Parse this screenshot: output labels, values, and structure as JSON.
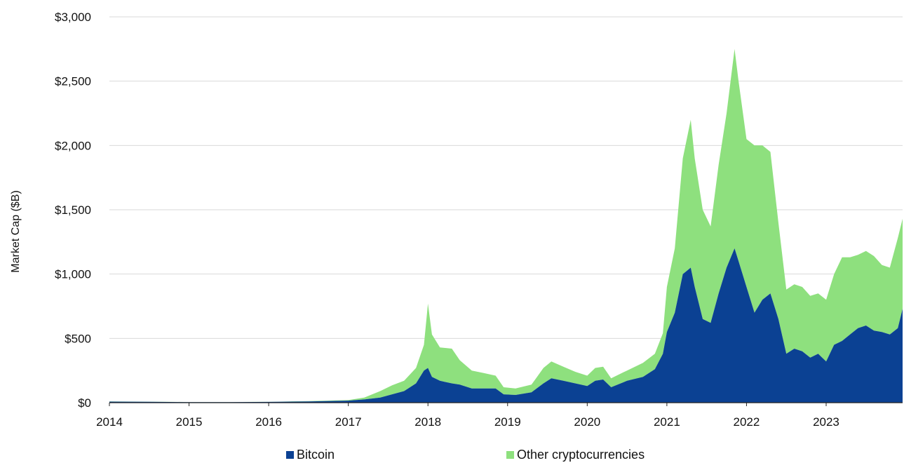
{
  "chart_data": {
    "type": "area",
    "stacked": true,
    "title": "",
    "xlabel": "",
    "ylabel": "Market Cap ($B)",
    "ylim": [
      0,
      3000
    ],
    "xlim": [
      2014.0,
      2023.96
    ],
    "y_ticks": [
      {
        "value": 0,
        "label": "$0"
      },
      {
        "value": 500,
        "label": "$500"
      },
      {
        "value": 1000,
        "label": "$1,000"
      },
      {
        "value": 1500,
        "label": "$1,500"
      },
      {
        "value": 2000,
        "label": "$2,000"
      },
      {
        "value": 2500,
        "label": "$2,500"
      },
      {
        "value": 3000,
        "label": "$3,000"
      }
    ],
    "x_ticks": [
      {
        "value": 2014,
        "label": "2014"
      },
      {
        "value": 2015,
        "label": "2015"
      },
      {
        "value": 2016,
        "label": "2016"
      },
      {
        "value": 2017,
        "label": "2017"
      },
      {
        "value": 2018,
        "label": "2018"
      },
      {
        "value": 2019,
        "label": "2019"
      },
      {
        "value": 2020,
        "label": "2020"
      },
      {
        "value": 2021,
        "label": "2021"
      },
      {
        "value": 2022,
        "label": "2022"
      },
      {
        "value": 2023,
        "label": "2023"
      }
    ],
    "grid": "horizontal",
    "legend_position": "bottom",
    "x": [
      2014.0,
      2014.5,
      2015.0,
      2015.5,
      2016.0,
      2016.5,
      2017.0,
      2017.2,
      2017.4,
      2017.55,
      2017.7,
      2017.85,
      2017.95,
      2018.0,
      2018.05,
      2018.15,
      2018.3,
      2018.4,
      2018.55,
      2018.7,
      2018.85,
      2018.95,
      2019.1,
      2019.3,
      2019.45,
      2019.55,
      2019.7,
      2019.85,
      2020.0,
      2020.1,
      2020.2,
      2020.3,
      2020.5,
      2020.7,
      2020.85,
      2020.95,
      2021.0,
      2021.1,
      2021.2,
      2021.3,
      2021.35,
      2021.45,
      2021.55,
      2021.65,
      2021.75,
      2021.85,
      2021.9,
      2022.0,
      2022.1,
      2022.2,
      2022.3,
      2022.4,
      2022.5,
      2022.6,
      2022.7,
      2022.8,
      2022.9,
      2023.0,
      2023.1,
      2023.2,
      2023.3,
      2023.4,
      2023.5,
      2023.6,
      2023.7,
      2023.8,
      2023.9,
      2023.96
    ],
    "series": [
      {
        "name": "Bitcoin",
        "color": "#0b4193",
        "values": [
          8,
          7,
          4,
          4,
          6,
          10,
          16,
          25,
          40,
          65,
          90,
          150,
          250,
          270,
          200,
          170,
          150,
          140,
          110,
          110,
          110,
          65,
          60,
          80,
          150,
          190,
          170,
          150,
          130,
          170,
          180,
          120,
          170,
          200,
          260,
          380,
          550,
          700,
          1000,
          1050,
          900,
          650,
          620,
          850,
          1050,
          1200,
          1100,
          900,
          700,
          800,
          850,
          650,
          380,
          420,
          400,
          350,
          380,
          320,
          450,
          480,
          530,
          580,
          600,
          560,
          550,
          530,
          580,
          730
        ]
      },
      {
        "name": "Other cryptocurrencies",
        "color": "#8ee07e",
        "values": [
          2,
          1,
          1,
          1,
          1,
          2,
          4,
          15,
          50,
          70,
          80,
          120,
          200,
          500,
          330,
          260,
          270,
          190,
          140,
          120,
          100,
          55,
          50,
          60,
          120,
          130,
          110,
          90,
          80,
          100,
          100,
          70,
          80,
          110,
          120,
          160,
          350,
          500,
          900,
          1150,
          1000,
          850,
          750,
          1000,
          1200,
          1550,
          1400,
          1150,
          1300,
          1200,
          1100,
          750,
          500,
          500,
          500,
          480,
          470,
          480,
          550,
          650,
          600,
          570,
          580,
          580,
          520,
          520,
          700,
          700
        ]
      }
    ]
  }
}
